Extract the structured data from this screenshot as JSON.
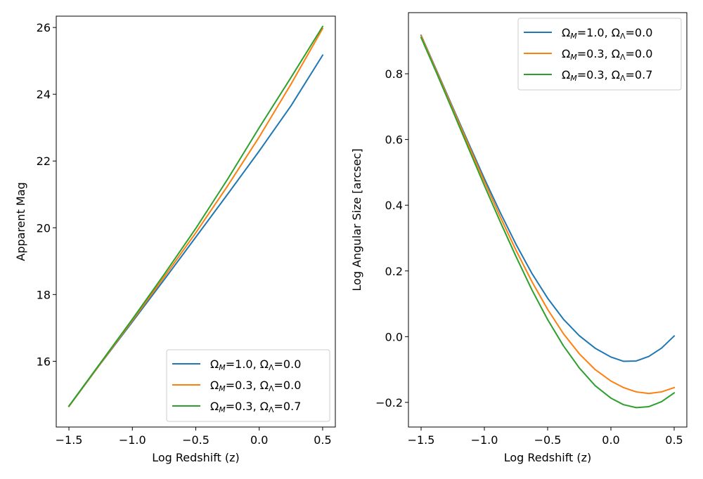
{
  "chart_data": [
    {
      "type": "line",
      "title": "",
      "xlabel": "Log Redshift (z)",
      "ylabel": "Apparent Mag",
      "xlim": [
        -1.6,
        0.6
      ],
      "ylim": [
        14.03,
        26.34
      ],
      "xticks": [
        -1.5,
        -1.0,
        -0.5,
        0.0,
        0.5
      ],
      "xtick_labels": [
        "−1.5",
        "−1.0",
        "−0.5",
        "0.0",
        "0.5"
      ],
      "yticks": [
        16,
        18,
        20,
        22,
        24,
        26
      ],
      "ytick_labels": [
        "16",
        "18",
        "20",
        "22",
        "24",
        "26"
      ],
      "grid": false,
      "legend_position": "lower-right",
      "x": [
        -1.5,
        -1.25,
        -1.0,
        -0.75,
        -0.5,
        -0.25,
        0.0,
        0.25,
        0.5
      ],
      "series": [
        {
          "name": "ΩM=1.0, ΩΛ=0.0",
          "label_main": "1.0",
          "label_lambda": "0.0",
          "color": "#1f77b4",
          "values": [
            14.65,
            15.93,
            17.18,
            18.44,
            19.72,
            21.0,
            22.3,
            23.65,
            25.17
          ]
        },
        {
          "name": "ΩM=0.3, ΩΛ=0.0",
          "label_main": "0.3",
          "label_lambda": "0.0",
          "color": "#ff7f0e",
          "values": [
            14.65,
            15.94,
            17.22,
            18.52,
            19.85,
            21.25,
            22.72,
            24.3,
            25.97
          ]
        },
        {
          "name": "ΩM=0.3, ΩΛ=0.7",
          "label_main": "0.3",
          "label_lambda": "0.7",
          "color": "#2ca02c",
          "values": [
            14.66,
            15.96,
            17.26,
            18.6,
            19.98,
            21.45,
            23.0,
            24.5,
            26.03
          ]
        }
      ]
    },
    {
      "type": "line",
      "title": "",
      "xlabel": "Log Redshift (z)",
      "ylabel": "Log Angular Size [arcsec]",
      "xlim": [
        -1.6,
        0.6
      ],
      "ylim": [
        -0.275,
        0.986
      ],
      "xticks": [
        -1.5,
        -1.0,
        -0.5,
        0.0,
        0.5
      ],
      "xtick_labels": [
        "−1.5",
        "−1.0",
        "−0.5",
        "0.0",
        "0.5"
      ],
      "yticks": [
        -0.2,
        0.0,
        0.2,
        0.4,
        0.6,
        0.8
      ],
      "ytick_labels": [
        "−0.2",
        "0.0",
        "0.2",
        "0.4",
        "0.6",
        "0.8"
      ],
      "grid": false,
      "legend_position": "upper-right",
      "x": [
        -1.5,
        -1.375,
        -1.25,
        -1.125,
        -1.0,
        -0.875,
        -0.75,
        -0.625,
        -0.5,
        -0.375,
        -0.25,
        -0.125,
        0.0,
        0.1,
        0.2,
        0.3,
        0.4,
        0.5
      ],
      "series": [
        {
          "name": "ΩM=1.0, ΩΛ=0.0",
          "label_main": "1.0",
          "label_lambda": "0.0",
          "color": "#1f77b4",
          "values": [
            0.917,
            0.808,
            0.698,
            0.589,
            0.481,
            0.378,
            0.281,
            0.193,
            0.117,
            0.053,
            0.003,
            -0.035,
            -0.062,
            -0.075,
            -0.074,
            -0.06,
            -0.035,
            0.002
          ]
        },
        {
          "name": "ΩM=0.3, ΩΛ=0.0",
          "label_main": "0.3",
          "label_lambda": "0.0",
          "color": "#ff7f0e",
          "values": [
            0.915,
            0.805,
            0.694,
            0.583,
            0.472,
            0.365,
            0.263,
            0.168,
            0.083,
            0.009,
            -0.052,
            -0.1,
            -0.135,
            -0.155,
            -0.168,
            -0.173,
            -0.168,
            -0.155
          ]
        },
        {
          "name": "ΩM=0.3, ΩΛ=0.7",
          "label_main": "0.3",
          "label_lambda": "0.7",
          "color": "#2ca02c",
          "values": [
            0.91,
            0.8,
            0.687,
            0.573,
            0.46,
            0.35,
            0.244,
            0.143,
            0.052,
            -0.028,
            -0.095,
            -0.149,
            -0.187,
            -0.207,
            -0.216,
            -0.213,
            -0.198,
            -0.171
          ]
        }
      ]
    }
  ]
}
